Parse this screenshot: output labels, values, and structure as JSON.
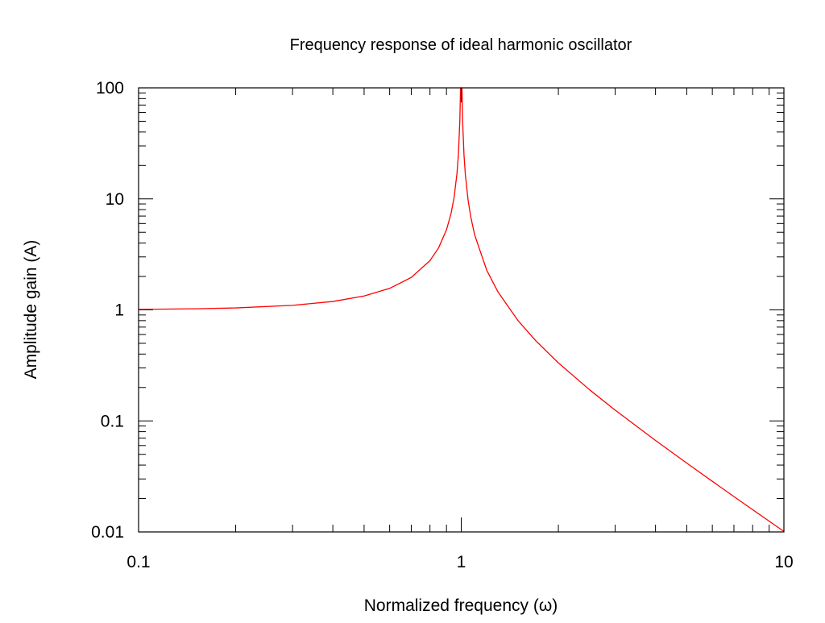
{
  "chart_data": {
    "type": "line",
    "title": "Frequency response of ideal harmonic oscillator",
    "xlabel": "Normalized frequency (ω)",
    "ylabel": "Amplitude gain (A)",
    "xscale": "log",
    "yscale": "log",
    "xlim": [
      0.1,
      10
    ],
    "ylim": [
      0.01,
      100
    ],
    "x_ticks": [
      {
        "value": 0.1,
        "label": "0.1"
      },
      {
        "value": 1,
        "label": "1"
      },
      {
        "value": 10,
        "label": "10"
      }
    ],
    "y_ticks": [
      {
        "value": 0.01,
        "label": "0.01"
      },
      {
        "value": 0.1,
        "label": "0.1"
      },
      {
        "value": 1,
        "label": "1"
      },
      {
        "value": 10,
        "label": "10"
      },
      {
        "value": 100,
        "label": "100"
      }
    ],
    "grid": false,
    "legend": "none",
    "series": [
      {
        "color": "#ff0000",
        "x": [
          0.1,
          0.15,
          0.2,
          0.3,
          0.4,
          0.5,
          0.6,
          0.7,
          0.8,
          0.85,
          0.9,
          0.93,
          0.95,
          0.97,
          0.98,
          0.99,
          0.995,
          0.999,
          1.0,
          1.001,
          1.005,
          1.01,
          1.02,
          1.03,
          1.05,
          1.07,
          1.1,
          1.15,
          1.2,
          1.3,
          1.5,
          1.7,
          2.0,
          2.5,
          3.0,
          4.0,
          5.0,
          6.0,
          7.0,
          8.0,
          9.0,
          10.0
        ],
        "y": [
          1.0101,
          1.023,
          1.0417,
          1.0989,
          1.1905,
          1.3333,
          1.5625,
          1.9608,
          2.7778,
          3.6036,
          5.2632,
          7.4019,
          10.2564,
          16.9205,
          25.2525,
          50.2513,
          100,
          100,
          100,
          100,
          99.75,
          49.75,
          24.75,
          16.42,
          9.7561,
          6.9013,
          4.7619,
          3.252,
          2.2727,
          1.4493,
          0.8,
          0.5291,
          0.3333,
          0.1905,
          0.125,
          0.06667,
          0.04167,
          0.02857,
          0.02083,
          0.01587,
          0.0125,
          0.0101
        ]
      }
    ]
  }
}
